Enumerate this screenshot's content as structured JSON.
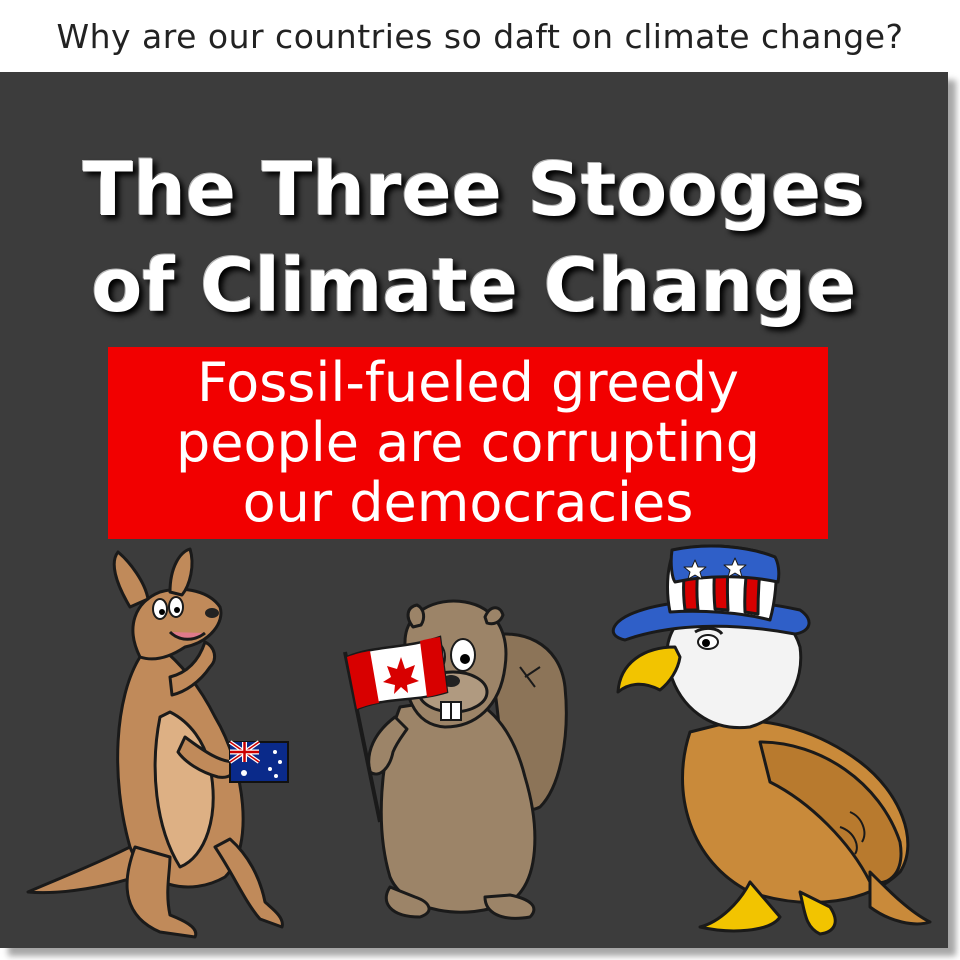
{
  "header": {
    "text": "Why are our countries so daft on climate change?"
  },
  "title": {
    "line1": "The Three Stooges",
    "line2": "of Climate Change"
  },
  "banner": {
    "line1": "Fossil-fueled greedy",
    "line2": "people are corrupting",
    "line3": "our democracies"
  },
  "characters": [
    {
      "animal": "kangaroo",
      "flag": "australia-flag"
    },
    {
      "animal": "beaver",
      "flag": "canada-flag"
    },
    {
      "animal": "eagle",
      "hat": "uncle-sam-hat"
    }
  ],
  "colors": {
    "panel": "#3c3c3c",
    "banner": "#f20000",
    "kangaroo": "#c08a5a",
    "beaver": "#9c8468",
    "eagle": "#c98a3a"
  }
}
